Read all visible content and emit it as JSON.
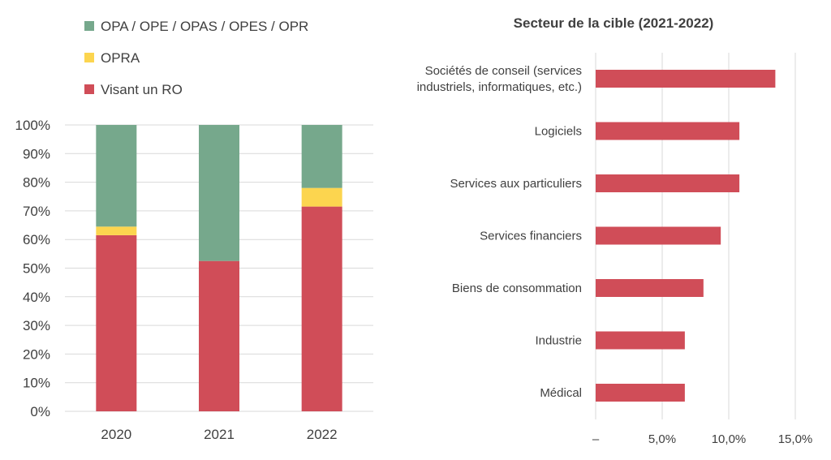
{
  "colors": {
    "green": "#76a88c",
    "yellow": "#fcd54f",
    "red": "#d04d58",
    "grid": "#d9d9d9",
    "text": "#404040"
  },
  "chart_data": [
    {
      "type": "bar",
      "stacked": true,
      "orientation": "vertical",
      "categories": [
        "2020",
        "2021",
        "2022"
      ],
      "series": [
        {
          "name": "Visant un RO",
          "color_key": "red",
          "values": [
            61.5,
            52.5,
            71.5
          ]
        },
        {
          "name": "OPRA",
          "color_key": "yellow",
          "values": [
            3.0,
            0.0,
            6.5
          ]
        },
        {
          "name": "OPA / OPE / OPAS / OPES / OPR",
          "color_key": "green",
          "values": [
            35.5,
            47.5,
            22.0
          ]
        }
      ],
      "legend_order": [
        2,
        1,
        0
      ],
      "legend_position": "top-left",
      "yticks": [
        "0%",
        "10%",
        "20%",
        "30%",
        "40%",
        "50%",
        "60%",
        "70%",
        "80%",
        "90%",
        "100%"
      ],
      "ylim": [
        0,
        100
      ],
      "title": "",
      "xlabel": "",
      "ylabel": ""
    },
    {
      "type": "bar",
      "orientation": "horizontal",
      "title": "Secteur de la cible (2021-2022)",
      "categories": [
        [
          "Sociétés de conseil (services",
          "industriels, informatiques, etc.)"
        ],
        [
          "Logiciels"
        ],
        [
          "Services aux particuliers"
        ],
        [
          "Services financiers"
        ],
        [
          "Biens de consommation"
        ],
        [
          "Industrie"
        ],
        [
          "Médical"
        ]
      ],
      "values": [
        13.5,
        10.8,
        10.8,
        9.4,
        8.1,
        6.7,
        6.7
      ],
      "xlim": [
        0,
        15
      ],
      "xticks": [
        {
          "value": 0,
          "label": "–"
        },
        {
          "value": 5,
          "label": "5,0%"
        },
        {
          "value": 10,
          "label": "10,0%"
        },
        {
          "value": 15,
          "label": "15,0%"
        }
      ],
      "color_key": "red"
    }
  ]
}
